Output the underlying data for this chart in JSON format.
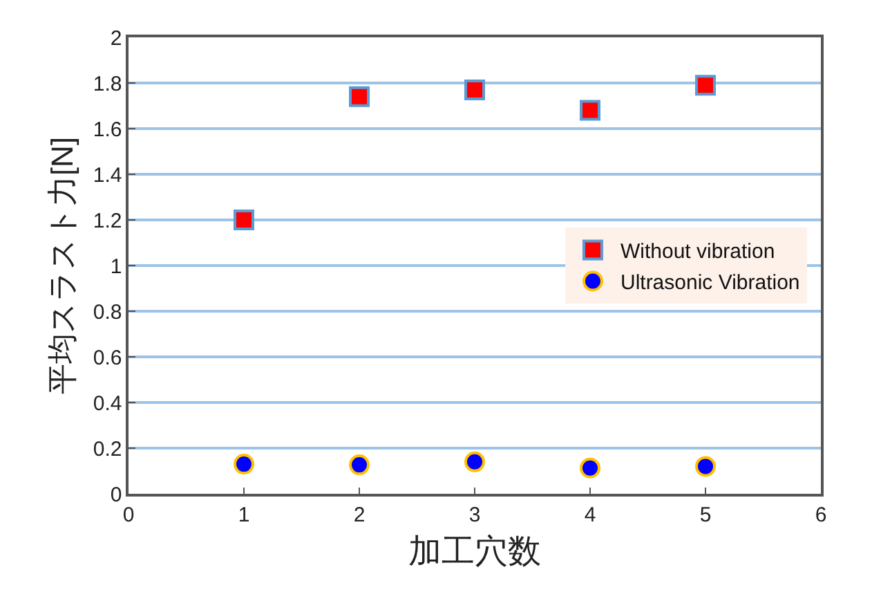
{
  "chart_data": {
    "type": "scatter",
    "xlabel": "加工穴数",
    "ylabel": "平均スラスト力[N]",
    "x": [
      1,
      2,
      3,
      4,
      5
    ],
    "series": [
      {
        "name": "Without vibration",
        "color": "#ff0000",
        "marker": "square",
        "values": [
          1.2,
          1.74,
          1.77,
          1.68,
          1.79
        ]
      },
      {
        "name": "Ultrasonic Vibration",
        "color": "#0000ff",
        "marker": "circle",
        "values": [
          0.13,
          0.127,
          0.14,
          0.113,
          0.12
        ]
      }
    ],
    "xlim": [
      0,
      6
    ],
    "xticks": [
      0,
      1,
      2,
      3,
      4,
      5,
      6
    ],
    "ylim": [
      0,
      2
    ],
    "yticks": [
      0,
      0.2,
      0.4,
      0.6,
      0.8,
      1,
      1.2,
      1.4,
      1.6,
      1.8,
      2
    ],
    "grid": "y",
    "legend": "right"
  }
}
